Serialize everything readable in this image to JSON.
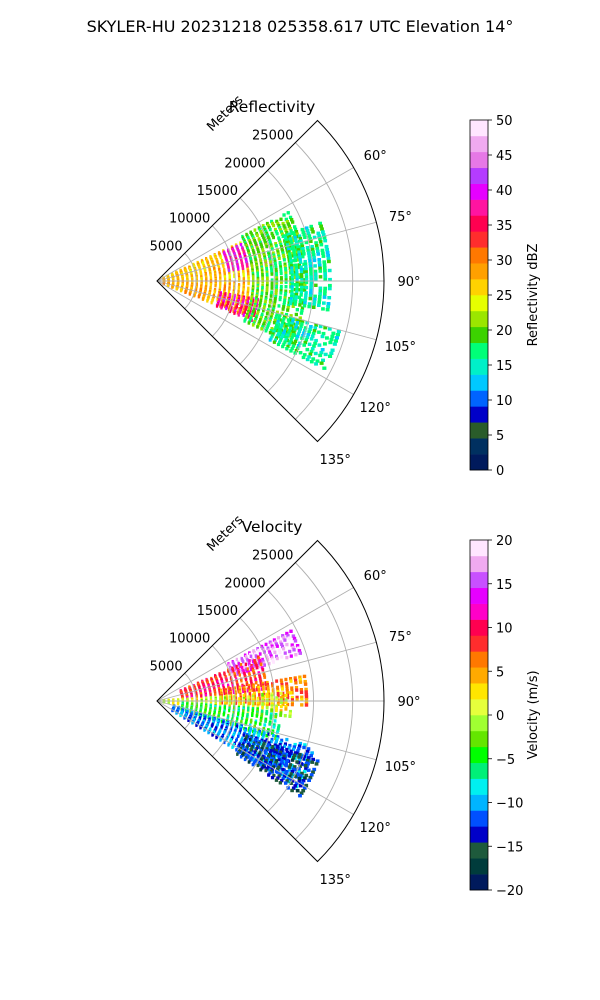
{
  "figure": {
    "suptitle": "SKYLER-HU  20231218  025358.617 UTC Elevation 14°"
  },
  "chart_data": [
    {
      "type": "heatmap",
      "projection": "polar-sector",
      "title": "Reflectivity",
      "radial_axis_label": "Meters",
      "radial_ticks": [
        5000,
        10000,
        15000,
        20000,
        25000
      ],
      "radial_tick_labels": [
        "5000",
        "10000",
        "15000",
        "20000",
        "25000"
      ],
      "rmax": 29000,
      "theta_range_deg": [
        45,
        135
      ],
      "theta_tick_labels": [
        "60°",
        "75°",
        "90°",
        "105°",
        "120°",
        "135°"
      ],
      "colorbar": {
        "label": "Reflectivity dBZ",
        "range": [
          0,
          50
        ],
        "ticks": [
          "0",
          "5",
          "10",
          "15",
          "20",
          "25",
          "30",
          "35",
          "40",
          "45",
          "50"
        ],
        "colormap": [
          "#001a5c",
          "#003060",
          "#2a5c2a",
          "#0000c8",
          "#0064ff",
          "#00c8ff",
          "#00f0c8",
          "#00ff78",
          "#3cd200",
          "#9be600",
          "#e6ff00",
          "#ffd200",
          "#ffa000",
          "#ff7800",
          "#ff2d2d",
          "#ff0050",
          "#ff14a0",
          "#e600ff",
          "#b43cff",
          "#e678e6",
          "#f0aaf0",
          "#ffe6ff"
        ]
      },
      "echo_regions": [
        {
          "theta": [
            65,
            90
          ],
          "r": [
            0,
            13000
          ],
          "value": 27
        },
        {
          "theta": [
            90,
            112
          ],
          "r": [
            0,
            13000
          ],
          "value": 28
        },
        {
          "theta": [
            66,
            82
          ],
          "r": [
            9000,
            14500
          ],
          "value": 39
        },
        {
          "theta": [
            100,
            113
          ],
          "r": [
            8000,
            13000
          ],
          "value": 37
        },
        {
          "theta": [
            62,
            115
          ],
          "r": [
            12000,
            19000
          ],
          "value": 19
        },
        {
          "theta": [
            70,
            100
          ],
          "r": [
            17000,
            22000
          ],
          "value": 16
        },
        {
          "theta": [
            105,
            118
          ],
          "r": [
            16000,
            24000
          ],
          "value": 16
        }
      ]
    },
    {
      "type": "heatmap",
      "projection": "polar-sector",
      "title": "Velocity",
      "radial_axis_label": "Meters",
      "radial_ticks": [
        5000,
        10000,
        15000,
        20000,
        25000
      ],
      "radial_tick_labels": [
        "5000",
        "10000",
        "15000",
        "20000",
        "25000"
      ],
      "rmax": 29000,
      "theta_range_deg": [
        45,
        135
      ],
      "theta_tick_labels": [
        "60°",
        "75°",
        "90°",
        "105°",
        "120°",
        "135°"
      ],
      "colorbar": {
        "label": "Velocity (m/s)",
        "range": [
          -20,
          20
        ],
        "ticks": [
          "−20",
          "−15",
          "−10",
          "−5",
          "0",
          "5",
          "10",
          "15",
          "20"
        ],
        "colormap": [
          "#001a5c",
          "#003c3c",
          "#1e5a3c",
          "#0000c8",
          "#0050ff",
          "#00b4ff",
          "#00f0f0",
          "#00f078",
          "#00ff00",
          "#64e600",
          "#a0ff32",
          "#e6ff3c",
          "#ffe600",
          "#ffaa00",
          "#ff7800",
          "#ff2d2d",
          "#ff0050",
          "#ff00c8",
          "#e600ff",
          "#c850ff",
          "#f0aaf0",
          "#ffe6ff"
        ]
      },
      "echo_regions": [
        {
          "theta": [
            62,
            72
          ],
          "r": [
            10000,
            19500
          ],
          "value": 16
        },
        {
          "theta": [
            66,
            84
          ],
          "r": [
            3000,
            14000
          ],
          "value": 9
        },
        {
          "theta": [
            80,
            92
          ],
          "r": [
            8000,
            19000
          ],
          "value": 6
        },
        {
          "theta": [
            86,
            97
          ],
          "r": [
            0,
            17000
          ],
          "value": 1
        },
        {
          "theta": [
            94,
            108
          ],
          "r": [
            3000,
            16000
          ],
          "value": -5
        },
        {
          "theta": [
            106,
            122
          ],
          "r": [
            2000,
            21000
          ],
          "value": -11
        },
        {
          "theta": [
            110,
            124
          ],
          "r": [
            12000,
            22000
          ],
          "value": -14
        }
      ]
    }
  ]
}
